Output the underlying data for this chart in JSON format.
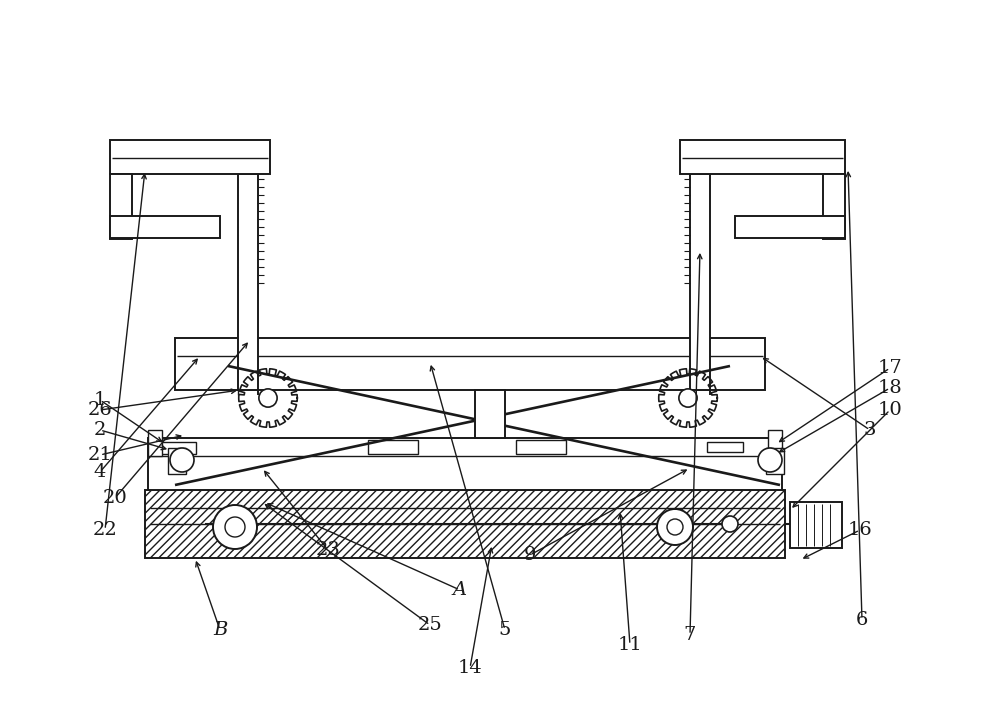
{
  "bg_color": "#ffffff",
  "line_color": "#1a1a1a",
  "lw": 1.4,
  "fig_width": 10.0,
  "fig_height": 7.04
}
